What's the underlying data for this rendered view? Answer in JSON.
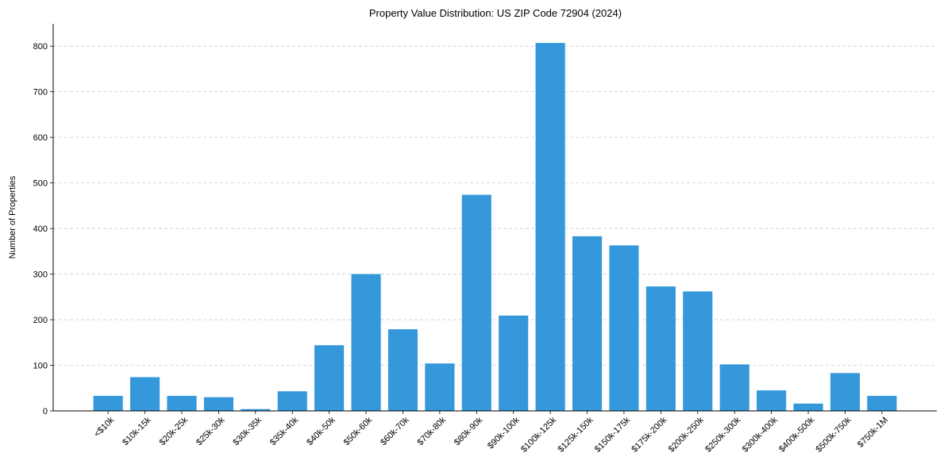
{
  "chart_data": {
    "type": "bar",
    "title": "Property Value Distribution: US ZIP Code 72904 (2024)",
    "xlabel": "",
    "ylabel": "Number of Properties",
    "categories": [
      "<$10k",
      "$10k-15k",
      "$20k-25k",
      "$25k-30k",
      "$30k-35k",
      "$35k-40k",
      "$40k-50k",
      "$50k-60k",
      "$60k-70k",
      "$70k-80k",
      "$80k-90k",
      "$90k-100k",
      "$100k-125k",
      "$125k-150k",
      "$150k-175k",
      "$175k-200k",
      "$200k-250k",
      "$250k-300k",
      "$300k-400k",
      "$400k-500k",
      "$500k-750k",
      "$750k-1M"
    ],
    "values": [
      33,
      74,
      33,
      30,
      4,
      43,
      144,
      300,
      179,
      104,
      474,
      209,
      807,
      383,
      363,
      273,
      262,
      102,
      45,
      16,
      83,
      33
    ],
    "ylim": [
      0,
      849
    ],
    "yticks": [
      0,
      100,
      200,
      300,
      400,
      500,
      600,
      700,
      800
    ],
    "grid": {
      "axis": "y",
      "style": "dashed",
      "color": "#cccccc"
    },
    "bar_color": "#3498db",
    "x_tick_rotation": 45,
    "legend": null
  }
}
